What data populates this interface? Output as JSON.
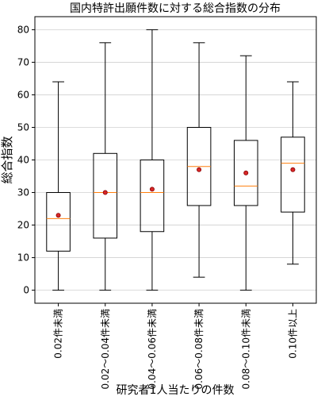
{
  "chart_data": {
    "type": "box",
    "title": "国内特許出願件数に対する総合指数の分布",
    "xlabel": "研究者1人当たりの件数",
    "ylabel": "総合指数",
    "ylim": [
      -4,
      84
    ],
    "yticks": [
      0,
      10,
      20,
      30,
      40,
      50,
      60,
      70,
      80
    ],
    "grid": "horizontal",
    "categories": [
      "0.02件未満",
      "0.02～0.04件未満",
      "0.04～0.06件未満",
      "0.06～0.08件未満",
      "0.08～0.10件未満",
      "0.10件以上"
    ],
    "boxes": [
      {
        "whisker_low": 0,
        "q1": 12,
        "median": 22,
        "q3": 30,
        "whisker_high": 64,
        "mean": 23
      },
      {
        "whisker_low": 0,
        "q1": 16,
        "median": 30,
        "q3": 42,
        "whisker_high": 76,
        "mean": 30
      },
      {
        "whisker_low": 0,
        "q1": 18,
        "median": 30,
        "q3": 40,
        "whisker_high": 80,
        "mean": 31
      },
      {
        "whisker_low": 4,
        "q1": 26,
        "median": 38,
        "q3": 50,
        "whisker_high": 76,
        "mean": 37
      },
      {
        "whisker_low": 0,
        "q1": 26,
        "median": 32,
        "q3": 46,
        "whisker_high": 72,
        "mean": 36
      },
      {
        "whisker_low": 8,
        "q1": 24,
        "median": 39,
        "q3": 47,
        "whisker_high": 64,
        "mean": 37
      }
    ],
    "colors": {
      "box": "#000000",
      "median": "#ff7f0e",
      "mean_fill": "#d62728",
      "mean_edge": "#8b0000",
      "grid": "#d0d0d0"
    }
  }
}
